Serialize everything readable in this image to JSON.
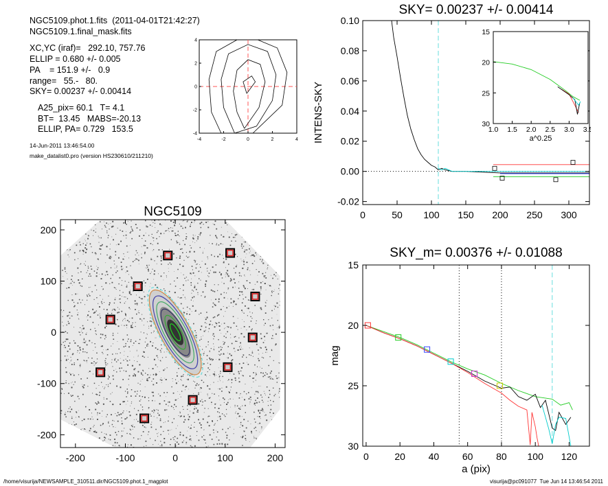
{
  "header": {
    "lines": [
      "NGC5109.phot.1.fits  (2011-04-01T21:42:27)",
      "NGC5109.1.final_mask.fits",
      "XC,YC (iraf)=   292.10, 757.76",
      "ELLIP = 0.680 +/- 0.005",
      "PA    = 151.9 +/-   0.9",
      "range=   55.-   80.",
      "SKY= 0.00237 +/- 0.00414",
      "A25_pix= 60.1   T= 4.1",
      "BT=  13.45   MABS=-20.13",
      "ELLIP, PA= 0.729   153.5",
      "14-Jun-2011 13:46:54.00",
      "make_datalist0.pro (version HS230610/211210)"
    ]
  },
  "footer": {
    "path": "/home/visurija/NEWSAMPLE_310511.dir/NGC5109.phot.1_magplot",
    "user_date": "visurija@pc091077  Tue Jun 14 13:46:54 2011"
  },
  "chart_data": [
    {
      "id": "contour-inset",
      "type": "contour",
      "title": "",
      "xlim": [
        -4,
        4
      ],
      "ylim": [
        -4,
        4
      ],
      "xticks": [
        "-4",
        "-2",
        "0",
        "2",
        "4"
      ],
      "yticks": [
        "-4",
        "-2",
        "0",
        "2",
        "4"
      ],
      "center_marker": [
        0,
        0
      ],
      "contours": [
        [
          [
            -0.1,
            -0.6
          ],
          [
            0.6,
            0.4
          ],
          [
            0.3,
            0.9
          ],
          [
            -0.4,
            0.4
          ],
          [
            -0.1,
            -0.6
          ]
        ],
        [
          [
            -0.3,
            -3.6
          ],
          [
            0.9,
            -1.8
          ],
          [
            1.4,
            0.4
          ],
          [
            1.0,
            1.9
          ],
          [
            0.0,
            2.3
          ],
          [
            -0.9,
            1.4
          ],
          [
            -1.2,
            -0.4
          ],
          [
            -0.9,
            -2.2
          ],
          [
            -0.3,
            -3.6
          ]
        ],
        [
          [
            -1.1,
            -4.0
          ],
          [
            0.7,
            -3.4
          ],
          [
            2.0,
            -1.2
          ],
          [
            2.3,
            1.0
          ],
          [
            1.6,
            3.0
          ],
          [
            0.0,
            3.6
          ],
          [
            -1.6,
            2.8
          ],
          [
            -2.2,
            0.6
          ],
          [
            -2.0,
            -1.8
          ],
          [
            -1.1,
            -4.0
          ]
        ],
        [
          [
            -2.2,
            -4.0
          ],
          [
            0.4,
            -4.0
          ],
          [
            2.8,
            -1.6
          ],
          [
            3.2,
            1.2
          ],
          [
            2.4,
            3.3
          ],
          [
            0.8,
            4.0
          ]
        ],
        [
          [
            -0.9,
            4.0
          ],
          [
            -2.6,
            3.0
          ],
          [
            -3.2,
            0.6
          ],
          [
            -3.0,
            -2.2
          ],
          [
            -2.2,
            -4.0
          ]
        ]
      ]
    },
    {
      "id": "sky-profile",
      "type": "line",
      "title": "SKY= 0.00237 +/- 0.00414",
      "xlabel": "",
      "ylabel": "INTENS-SKY",
      "xlim": [
        0,
        330
      ],
      "ylim": [
        -0.022,
        0.1
      ],
      "xticks": [
        0,
        50,
        100,
        150,
        200,
        250,
        300
      ],
      "yticks": [
        -0.02,
        0.0,
        0.02,
        0.04,
        0.06,
        0.08,
        0.1
      ],
      "ytick_labels": [
        "-0.02",
        "0.00",
        "0.02",
        "0.04",
        "0.06",
        "0.08",
        "0.10"
      ],
      "vline": 110,
      "series": [
        {
          "color": "#000000",
          "points": [
            [
              42,
              0.1
            ],
            [
              45,
              0.089
            ],
            [
              50,
              0.076
            ],
            [
              55,
              0.062
            ],
            [
              60,
              0.049
            ],
            [
              65,
              0.037
            ],
            [
              70,
              0.028
            ],
            [
              75,
              0.021
            ],
            [
              80,
              0.015
            ],
            [
              85,
              0.011
            ],
            [
              90,
              0.008
            ],
            [
              95,
              0.006
            ],
            [
              100,
              0.004
            ],
            [
              105,
              0.003
            ],
            [
              110,
              0.001
            ],
            [
              115,
              0.002
            ],
            [
              120,
              0.001
            ],
            [
              130,
              0.0
            ],
            [
              150,
              0.0
            ],
            [
              200,
              -0.001
            ],
            [
              250,
              -0.001
            ],
            [
              300,
              -0.001
            ],
            [
              330,
              -0.001
            ]
          ]
        },
        {
          "color": "#00cccc",
          "points": [
            [
              110,
              0.002
            ],
            [
              115,
              0.001
            ],
            [
              120,
              0.002
            ],
            [
              130,
              0.0
            ],
            [
              150,
              0.0
            ],
            [
              200,
              0.0
            ],
            [
              260,
              0.0
            ],
            [
              300,
              0.0
            ],
            [
              330,
              0.0
            ]
          ]
        },
        {
          "color": "#ff3333",
          "points": [
            [
              190,
              0.0045
            ],
            [
              330,
              0.0045
            ]
          ]
        },
        {
          "color": "#22cc22",
          "points": [
            [
              190,
              -0.0035
            ],
            [
              330,
              -0.0035
            ]
          ]
        },
        {
          "color": "#3344ff",
          "points": [
            [
              200,
              -0.0015
            ],
            [
              330,
              -0.0015
            ]
          ]
        }
      ],
      "markers": [
        [
          192,
          0.002
        ],
        [
          203,
          -0.0045
        ],
        [
          281,
          -0.0055
        ],
        [
          306,
          0.006
        ]
      ]
    },
    {
      "id": "sky-inset",
      "type": "line",
      "title": "",
      "xlabel": "a^0.25",
      "ylabel": "",
      "xlim": [
        1.0,
        3.5
      ],
      "ylim": [
        30,
        15
      ],
      "xticks": [
        1.0,
        1.5,
        2.0,
        2.5,
        3.0,
        3.5
      ],
      "xtick_labels": [
        "1.0",
        "1.5",
        "2.0",
        "2.5",
        "3.0",
        "3.5"
      ],
      "yticks": [
        15,
        20,
        25,
        30
      ],
      "series": [
        {
          "color": "#22cc22",
          "points": [
            [
              1.0,
              19.9
            ],
            [
              1.5,
              20.3
            ],
            [
              2.0,
              21.2
            ],
            [
              2.5,
              22.8
            ],
            [
              2.9,
              24.6
            ],
            [
              3.1,
              25.6
            ],
            [
              3.28,
              26.2
            ]
          ]
        },
        {
          "color": "#ff3333",
          "points": [
            [
              2.8,
              24.4
            ],
            [
              3.0,
              25.2
            ],
            [
              3.1,
              26.4
            ],
            [
              3.2,
              27.6
            ],
            [
              3.25,
              28.2
            ]
          ]
        },
        {
          "color": "#000000",
          "points": [
            [
              2.7,
              24.0
            ],
            [
              3.0,
              25.3
            ],
            [
              3.15,
              26.1
            ],
            [
              3.22,
              28.5
            ],
            [
              3.28,
              26.6
            ]
          ]
        },
        {
          "color": "#00cccc",
          "points": [
            [
              3.1,
              25.8
            ],
            [
              3.25,
              27.0
            ],
            [
              3.3,
              26.4
            ]
          ]
        }
      ]
    },
    {
      "id": "galaxy-map",
      "type": "image",
      "title": "NGC5109",
      "xlim": [
        -230,
        220
      ],
      "ylim": [
        -225,
        220
      ],
      "xticks": [
        -200,
        -100,
        0,
        100,
        200
      ],
      "yticks": [
        -200,
        -100,
        0,
        100,
        200
      ],
      "ellipse": {
        "cx": 0,
        "cy": 0,
        "a": 95,
        "b": 30,
        "pa": 151.9
      },
      "mask_boxes": [
        [
          -15,
          150
        ],
        [
          110,
          155
        ],
        [
          -75,
          90
        ],
        [
          160,
          70
        ],
        [
          -130,
          25
        ],
        [
          155,
          -10
        ],
        [
          -150,
          -78
        ],
        [
          105,
          -68
        ],
        [
          35,
          -132
        ],
        [
          -62,
          -168
        ]
      ]
    },
    {
      "id": "mag-profile",
      "type": "line",
      "title": "SKY_m=  0.00376 +/- 0.01088",
      "xlabel": "a (pix)",
      "ylabel": "mag",
      "xlim": [
        -2,
        132
      ],
      "ylim": [
        30,
        15
      ],
      "xticks": [
        0,
        20,
        40,
        60,
        80,
        100,
        120
      ],
      "yticks": [
        15,
        20,
        25,
        30
      ],
      "vlines_dotted": [
        55,
        80
      ],
      "vline_cyan": 110,
      "series": [
        {
          "color": "#22cc22",
          "points": [
            [
              0,
              20.0
            ],
            [
              10,
              20.5
            ],
            [
              20,
              21.0
            ],
            [
              30,
              21.6
            ],
            [
              40,
              22.3
            ],
            [
              50,
              23.0
            ],
            [
              60,
              23.6
            ],
            [
              70,
              24.1
            ],
            [
              80,
              24.8
            ],
            [
              90,
              25.4
            ],
            [
              100,
              25.9
            ],
            [
              110,
              26.1
            ],
            [
              115,
              26.6
            ],
            [
              120,
              26.4
            ],
            [
              122,
              27.0
            ]
          ]
        },
        {
          "color": "#000000",
          "points": [
            [
              0,
              20.0
            ],
            [
              10,
              20.6
            ],
            [
              20,
              21.1
            ],
            [
              30,
              21.7
            ],
            [
              40,
              22.4
            ],
            [
              50,
              23.1
            ],
            [
              60,
              23.8
            ],
            [
              70,
              24.6
            ],
            [
              80,
              25.2
            ],
            [
              85,
              25.1
            ],
            [
              90,
              25.9
            ],
            [
              95,
              26.2
            ],
            [
              100,
              25.7
            ],
            [
              103,
              26.8
            ],
            [
              106,
              26.2
            ],
            [
              110,
              28.5
            ],
            [
              112,
              28.7
            ],
            [
              114,
              27.2
            ],
            [
              118,
              28.2
            ],
            [
              121,
              27.6
            ]
          ]
        },
        {
          "color": "#ff3333",
          "points": [
            [
              0,
              20.0
            ],
            [
              10,
              20.6
            ],
            [
              20,
              21.1
            ],
            [
              30,
              21.7
            ],
            [
              40,
              22.4
            ],
            [
              50,
              23.1
            ],
            [
              60,
              23.9
            ],
            [
              70,
              24.8
            ],
            [
              80,
              25.6
            ],
            [
              85,
              26.2
            ],
            [
              90,
              26.7
            ],
            [
              95,
              27.0
            ],
            [
              97,
              29.9
            ],
            [
              98,
              27.2
            ],
            [
              100,
              28.4
            ],
            [
              101,
              29.3
            ],
            [
              102,
              30.0
            ]
          ]
        },
        {
          "color": "#00cccc",
          "points": [
            [
              104,
              26.6
            ],
            [
              106,
              27.6
            ],
            [
              108,
              28.6
            ],
            [
              110,
              29.8
            ],
            [
              112,
              28.2
            ],
            [
              114,
              27.6
            ],
            [
              118,
              27.7
            ],
            [
              121,
              30.0
            ]
          ]
        }
      ],
      "markers": [
        {
          "color": "#ff3333",
          "x": 1,
          "y": 20.0
        },
        {
          "color": "#22cc22",
          "x": 19,
          "y": 21.0
        },
        {
          "color": "#3344ff",
          "x": 36,
          "y": 22.0
        },
        {
          "color": "#00cccc",
          "x": 50,
          "y": 23.0
        },
        {
          "color": "#cc33cc",
          "x": 64,
          "y": 24.0
        },
        {
          "color": "#cccc00",
          "x": 79,
          "y": 25.0
        }
      ]
    }
  ]
}
